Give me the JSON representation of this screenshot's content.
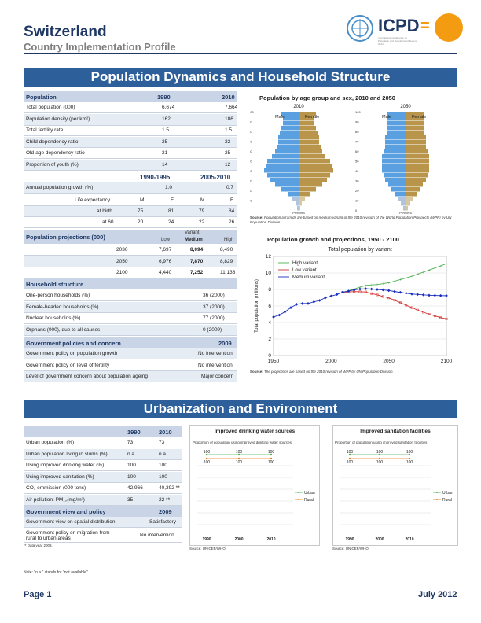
{
  "header": {
    "title": "Switzerland",
    "subtitle": "Country Implementation Profile",
    "logo_text": "ICPD",
    "logo_eq": "=",
    "logo_small": "International Conference on Population and Development Beyond 2014"
  },
  "sections": {
    "pop": "Population Dynamics and Household Structure",
    "urb": "Urbanization and Environment"
  },
  "population": {
    "header": {
      "label": "Population",
      "y1": "1990",
      "y2": "2010"
    },
    "rows": [
      {
        "label": "Total population (000)",
        "v1": "6,674",
        "v2": "7,664"
      },
      {
        "label": "Population density (per km²)",
        "v1": "162",
        "v2": "186"
      },
      {
        "label": "Total fertility rate",
        "v1": "1.5",
        "v2": "1.5"
      },
      {
        "label": "Child dependency ratio",
        "v1": "25",
        "v2": "22"
      },
      {
        "label": "Old-age dependency ratio",
        "v1": "21",
        "v2": "25"
      },
      {
        "label": "Proportion of youth (%)",
        "v1": "14",
        "v2": "12"
      }
    ],
    "period_header": {
      "p1": "1990-1995",
      "p2": "2005-2010"
    },
    "growth": {
      "label": "Annual population growth (%)",
      "v1": "1.0",
      "v2": "0.7"
    },
    "life": {
      "label": "Life expectancy",
      "m1": "M",
      "f1": "F",
      "m2": "M",
      "f2": "F"
    },
    "birth": {
      "label": "at birth",
      "a": "75",
      "b": "81",
      "c": "79",
      "d": "84"
    },
    "age60": {
      "label": "at 60",
      "a": "20",
      "b": "24",
      "c": "22",
      "d": "26"
    }
  },
  "projections": {
    "header": "Population projections (000)",
    "variant": "Variant",
    "low": "Low",
    "medium": "Medium",
    "high": "High",
    "rows": [
      {
        "year": "2030",
        "low": "7,697",
        "med": "8,094",
        "high": "8,490"
      },
      {
        "year": "2050",
        "low": "6,976",
        "med": "7,870",
        "high": "8,829"
      },
      {
        "year": "2100",
        "low": "4,440",
        "med": "7,252",
        "high": "11,138"
      }
    ]
  },
  "household": {
    "header": "Household structure",
    "rows": [
      {
        "label": "One-person households (%)",
        "value": "36 (2000)"
      },
      {
        "label": "Female-headed households (%)",
        "value": "37 (2000)"
      },
      {
        "label": "Nuclear households (%)",
        "value": "77 (2000)"
      },
      {
        "label": "Orphans (000), due to all causes",
        "value": "0 (2009)"
      }
    ]
  },
  "gov_policy": {
    "header": "Government policies and concern",
    "year": "2009",
    "rows": [
      {
        "label": "Government policy on population growth",
        "value": "No intervention"
      },
      {
        "label": "Government policy on level of fertility",
        "value": "No intervention"
      },
      {
        "label": "Level of government concern about population ageing",
        "value": "Major concern"
      }
    ]
  },
  "pyramid": {
    "title": "Population by age group and sex, 2010 and 2050",
    "y2010": "2010",
    "y2050": "2050",
    "male": "Male",
    "female": "Female",
    "ticks": [
      "100",
      "90",
      "80",
      "70",
      "60",
      "50",
      "40",
      "30",
      "20",
      "10",
      "0"
    ],
    "xlabel": "Percent",
    "source_label": "Source:",
    "source": "Population pyramids are based on medium variant of the 2010 revision of the World Population Prospects (WPP) by UN Population Division."
  },
  "growth_chart": {
    "title": "Population growth and projections, 1950 - 2100",
    "source_label": "Source:",
    "source": "The projections are based on the 2010 revision of WPP by UN Population Division."
  },
  "chart_data": [
    {
      "type": "line",
      "title": "Total population by variant",
      "ylabel": "Total population (millions)",
      "xlim": [
        1950,
        2100
      ],
      "ylim": [
        0,
        12
      ],
      "xticks": [
        "1950",
        "2000",
        "2050",
        "2100"
      ],
      "yticks": [
        "0",
        "2",
        "4",
        "6",
        "8",
        "10",
        "12"
      ],
      "legend": "top-left",
      "series": [
        {
          "name": "High variant",
          "color": "#4caf50",
          "x": [
            2010,
            2015,
            2020,
            2025,
            2030,
            2035,
            2040,
            2045,
            2050,
            2055,
            2060,
            2065,
            2070,
            2075,
            2080,
            2085,
            2090,
            2095,
            2100
          ],
          "y": [
            7.66,
            7.85,
            8.05,
            8.28,
            8.49,
            8.55,
            8.6,
            8.7,
            8.83,
            9.0,
            9.2,
            9.4,
            9.6,
            9.85,
            10.1,
            10.35,
            10.6,
            10.85,
            11.14
          ]
        },
        {
          "name": "Low variant",
          "color": "#d32f2f",
          "x": [
            2010,
            2015,
            2020,
            2025,
            2030,
            2035,
            2040,
            2045,
            2050,
            2055,
            2060,
            2065,
            2070,
            2075,
            2080,
            2085,
            2090,
            2095,
            2100
          ],
          "y": [
            7.66,
            7.7,
            7.74,
            7.72,
            7.7,
            7.5,
            7.35,
            7.15,
            6.98,
            6.7,
            6.4,
            6.1,
            5.8,
            5.5,
            5.25,
            5.0,
            4.8,
            4.6,
            4.44
          ]
        },
        {
          "name": "Medium variant",
          "color": "#1a2fbf",
          "x": [
            1950,
            1955,
            1960,
            1965,
            1970,
            1975,
            1980,
            1985,
            1990,
            1995,
            2000,
            2005,
            2010,
            2015,
            2020,
            2025,
            2030,
            2035,
            2040,
            2045,
            2050,
            2055,
            2060,
            2065,
            2070,
            2075,
            2080,
            2085,
            2090,
            2095,
            2100
          ],
          "y": [
            4.67,
            4.9,
            5.3,
            5.8,
            6.2,
            6.3,
            6.3,
            6.5,
            6.67,
            7.0,
            7.2,
            7.4,
            7.66,
            7.8,
            7.95,
            8.05,
            8.09,
            8.05,
            8.0,
            7.95,
            7.87,
            7.75,
            7.65,
            7.55,
            7.45,
            7.4,
            7.35,
            7.3,
            7.28,
            7.26,
            7.25
          ]
        }
      ]
    },
    {
      "type": "line",
      "title": "Improved drinking water sources",
      "subtitle": "Proportion of population using improved drinking water sources",
      "xticks": [
        "1990",
        "2000",
        "2010"
      ],
      "legend": "right",
      "series": [
        {
          "name": "Urban",
          "color": "#4caf50",
          "x": [
            1990,
            2000,
            2010
          ],
          "y": [
            100,
            100,
            100
          ]
        },
        {
          "name": "Rural",
          "color": "#e67e22",
          "x": [
            1990,
            2000,
            2010
          ],
          "y": [
            100,
            100,
            100
          ]
        }
      ]
    },
    {
      "type": "line",
      "title": "Improved sanitation facilities",
      "subtitle": "Proportion of population using improved sanitation facilities",
      "xticks": [
        "1990",
        "2000",
        "2010"
      ],
      "legend": "right",
      "series": [
        {
          "name": "Urban",
          "color": "#4caf50",
          "x": [
            1990,
            2000,
            2010
          ],
          "y": [
            100,
            100,
            100
          ]
        },
        {
          "name": "Rural",
          "color": "#e67e22",
          "x": [
            1990,
            2000,
            2010
          ],
          "y": [
            100,
            100,
            100
          ]
        }
      ]
    }
  ],
  "urban_table": {
    "y1": "1990",
    "y2": "2010",
    "rows": [
      {
        "label": "Urban population (%)",
        "v1": "73",
        "v2": "73"
      },
      {
        "label": "Urban population living in slums (%)",
        "v1": "n.a.",
        "v2": "n.a."
      },
      {
        "label": "Using improved drinking water (%)",
        "v1": "100",
        "v2": "100"
      },
      {
        "label": "Using improved sanitation (%)",
        "v1": "100",
        "v2": "100"
      },
      {
        "label": "CO₂ emmission (000 tons)",
        "v1": "42,966",
        "v2": "40,392 **"
      },
      {
        "label": "Air pollution: PM₁₀(mg/m³)",
        "v1": "35",
        "v2": "22 **"
      }
    ]
  },
  "gov_view": {
    "header": "Government view and policy",
    "year": "2009",
    "rows": [
      {
        "label": "Government view on spatial distribution",
        "value": "Satisfactory"
      },
      {
        "label": "Government policy on migration from rural to urban areas",
        "value": "No intervention"
      }
    ],
    "footnote": "** Data year 2008."
  },
  "water_source": "Source: UNICEF/WHO",
  "san_source": "Source: UNICEF/WHO",
  "note": "Note: \"n.a.\" stands for \"not available\".",
  "footer": {
    "page": "Page 1",
    "date": "July 2012"
  }
}
